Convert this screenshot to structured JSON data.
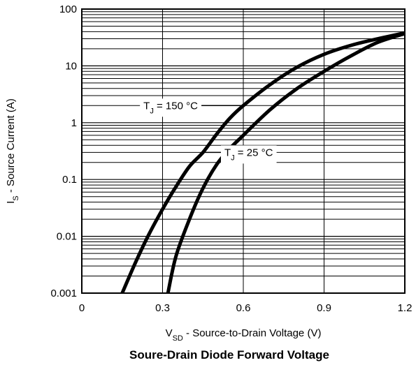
{
  "chart_data": {
    "type": "line",
    "title": "Soure-Drain Diode Forward Voltage",
    "xlabel": {
      "main": "V",
      "sub": "SD",
      "rest": " - Source-to-Drain Voltage (V)"
    },
    "ylabel": {
      "main": "I",
      "sub": "S",
      "rest": " - Source Current (A)"
    },
    "x_scale": "linear",
    "y_scale": "log",
    "xlim": [
      0,
      1.2
    ],
    "ylim": [
      0.001,
      100
    ],
    "x_ticks": [
      0,
      0.3,
      0.6,
      0.9,
      1.2
    ],
    "x_tick_labels": [
      "0",
      "0.3",
      "0.6",
      "0.9",
      "1.2"
    ],
    "y_ticks": [
      0.001,
      0.01,
      0.1,
      1,
      10,
      100
    ],
    "y_tick_labels": [
      "0.001",
      "0.01",
      "0.1",
      "1",
      "10",
      "100"
    ],
    "grid": "on (log minor gridlines)",
    "series": [
      {
        "name": "T_J = 150 °C",
        "label": {
          "main": "T",
          "sub": "J",
          "rest": " = 150 °C"
        },
        "color": "#000000",
        "x": [
          0.15,
          0.2,
          0.25,
          0.3,
          0.35,
          0.4,
          0.45,
          0.5,
          0.55,
          0.6,
          0.7,
          0.8,
          0.9,
          1.0,
          1.1,
          1.2
        ],
        "y": [
          0.001,
          0.0035,
          0.011,
          0.03,
          0.075,
          0.17,
          0.3,
          0.62,
          1.2,
          2.0,
          4.7,
          9.5,
          16,
          23,
          30,
          38
        ]
      },
      {
        "name": "T_J = 25 °C",
        "label": {
          "main": "T",
          "sub": "J",
          "rest": " = 25 °C"
        },
        "color": "#000000",
        "x": [
          0.32,
          0.35,
          0.4,
          0.45,
          0.5,
          0.55,
          0.6,
          0.7,
          0.8,
          0.9,
          1.0,
          1.1,
          1.2
        ],
        "y": [
          0.001,
          0.0045,
          0.02,
          0.07,
          0.18,
          0.35,
          0.6,
          1.7,
          4.0,
          8.0,
          15,
          26,
          37
        ]
      }
    ]
  }
}
